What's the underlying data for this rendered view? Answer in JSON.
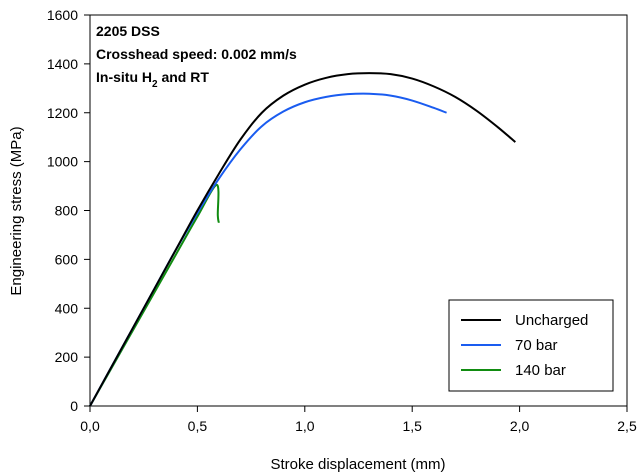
{
  "chart_data": {
    "type": "line",
    "xlabel": "Stroke displacement (mm)",
    "ylabel": "Engineering stress (MPa)",
    "xlim": [
      0,
      2.5
    ],
    "ylim": [
      0,
      1600
    ],
    "x_ticks": [
      "0,0",
      "0,5",
      "1,0",
      "1,5",
      "2,0",
      "2,5"
    ],
    "y_ticks": [
      "0",
      "200",
      "400",
      "600",
      "800",
      "1000",
      "1200",
      "1400",
      "1600"
    ],
    "annotation": {
      "line1": "2205 DSS",
      "line2": "Crosshead speed: 0.002 mm/s",
      "line3_pre": "In-situ H",
      "line3_sub": "2",
      "line3_post": " and RT"
    },
    "grid": false,
    "legend_position": "bottom-right",
    "series": [
      {
        "name": "Uncharged",
        "color": "#000000",
        "x": [
          0,
          0.1,
          0.2,
          0.3,
          0.4,
          0.5,
          0.6,
          0.7,
          0.8,
          0.9,
          1.0,
          1.1,
          1.2,
          1.3,
          1.4,
          1.5,
          1.6,
          1.7,
          1.8,
          1.9,
          1.98
        ],
        "y": [
          0,
          160,
          320,
          480,
          640,
          800,
          950,
          1090,
          1200,
          1270,
          1315,
          1343,
          1358,
          1362,
          1358,
          1340,
          1308,
          1265,
          1208,
          1140,
          1080
        ]
      },
      {
        "name": "70 bar",
        "color": "#1a5cf0",
        "x": [
          0,
          0.1,
          0.2,
          0.3,
          0.4,
          0.5,
          0.6,
          0.7,
          0.8,
          0.9,
          1.0,
          1.1,
          1.2,
          1.3,
          1.4,
          1.5,
          1.6,
          1.66
        ],
        "y": [
          0,
          160,
          320,
          480,
          640,
          790,
          930,
          1050,
          1145,
          1205,
          1243,
          1265,
          1276,
          1278,
          1270,
          1250,
          1220,
          1200
        ]
      },
      {
        "name": "140 bar",
        "color": "#118c11",
        "x": [
          0,
          0.1,
          0.2,
          0.3,
          0.4,
          0.5,
          0.59,
          0.595,
          0.6
        ],
        "y": [
          0,
          155,
          310,
          465,
          620,
          775,
          905,
          780,
          750
        ]
      }
    ]
  }
}
